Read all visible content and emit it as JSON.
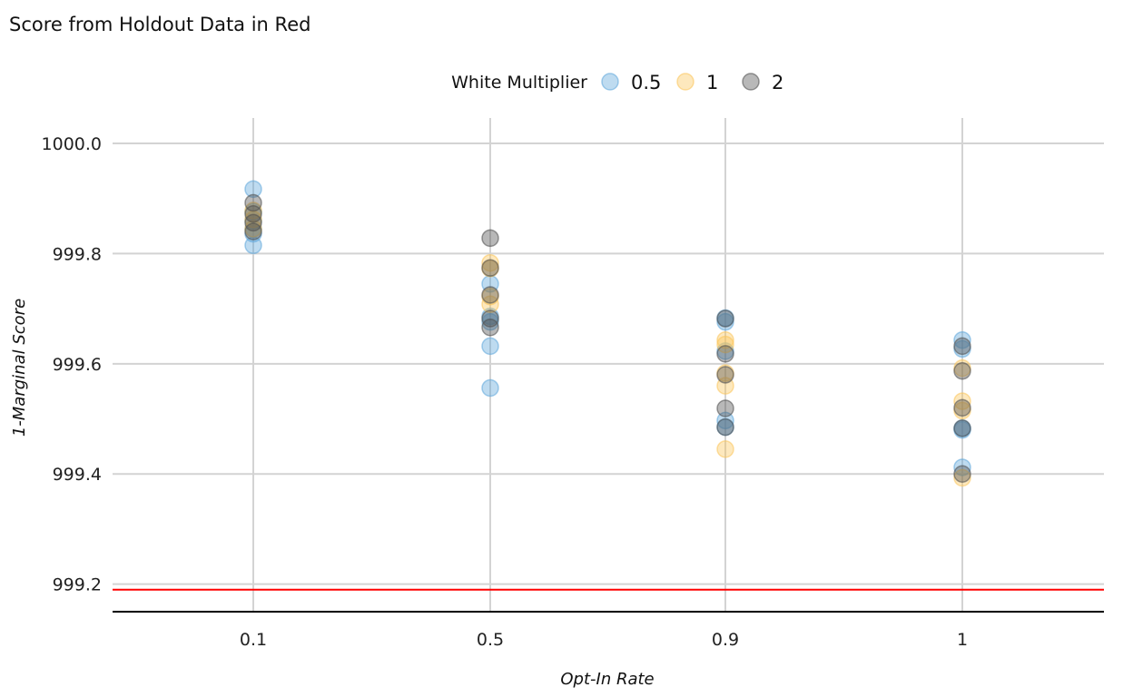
{
  "chart_data": {
    "type": "scatter",
    "title": "Score from Holdout Data in Red",
    "xlabel": "Opt-In Rate",
    "ylabel": "1-Marginal Score",
    "categories": [
      "0.1",
      "0.5",
      "0.9",
      "1"
    ],
    "ylim": [
      999.15,
      1000.0
    ],
    "yticks": [
      "999.2",
      "999.4",
      "999.6",
      "999.8",
      "1000.0"
    ],
    "grid": true,
    "legend": {
      "title": "White Multiplier",
      "placement": "top-center"
    },
    "reference_line": {
      "value": 999.19,
      "color": "#ff0000"
    },
    "series": [
      {
        "name": "0.5",
        "color": "#5DA5DA",
        "points": [
          [
            "0.1",
            999.917
          ],
          [
            "0.1",
            999.876
          ],
          [
            "0.1",
            999.86
          ],
          [
            "0.1",
            999.845
          ],
          [
            "0.1",
            999.836
          ],
          [
            "0.1",
            999.815
          ],
          [
            "0.5",
            999.745
          ],
          [
            "0.5",
            999.686
          ],
          [
            "0.5",
            999.676
          ],
          [
            "0.5",
            999.632
          ],
          [
            "0.5",
            999.556
          ],
          [
            "0.9",
            999.683
          ],
          [
            "0.9",
            999.676
          ],
          [
            "0.9",
            999.623
          ],
          [
            "0.9",
            999.497
          ],
          [
            "0.9",
            999.485
          ],
          [
            "1",
            999.643
          ],
          [
            "1",
            999.627
          ],
          [
            "1",
            999.483
          ],
          [
            "1",
            999.48
          ],
          [
            "1",
            999.412
          ]
        ]
      },
      {
        "name": "1",
        "color": "#FBC55A",
        "points": [
          [
            "0.1",
            999.878
          ],
          [
            "0.1",
            999.862
          ],
          [
            "0.1",
            999.845
          ],
          [
            "0.5",
            999.783
          ],
          [
            "0.5",
            999.773
          ],
          [
            "0.5",
            999.722
          ],
          [
            "0.5",
            999.708
          ],
          [
            "0.9",
            999.643
          ],
          [
            "0.9",
            999.635
          ],
          [
            "0.9",
            999.583
          ],
          [
            "0.9",
            999.56
          ],
          [
            "0.9",
            999.445
          ],
          [
            "1",
            999.592
          ],
          [
            "1",
            999.532
          ],
          [
            "1",
            999.515
          ],
          [
            "1",
            999.393
          ]
        ]
      },
      {
        "name": "2",
        "color": "#4D4D4D",
        "points": [
          [
            "0.1",
            999.892
          ],
          [
            "0.1",
            999.872
          ],
          [
            "0.1",
            999.856
          ],
          [
            "0.1",
            999.84
          ],
          [
            "0.5",
            999.828
          ],
          [
            "0.5",
            999.774
          ],
          [
            "0.5",
            999.725
          ],
          [
            "0.5",
            999.682
          ],
          [
            "0.5",
            999.666
          ],
          [
            "0.9",
            999.682
          ],
          [
            "0.9",
            999.618
          ],
          [
            "0.9",
            999.58
          ],
          [
            "0.9",
            999.519
          ],
          [
            "0.9",
            999.485
          ],
          [
            "1",
            999.632
          ],
          [
            "1",
            999.587
          ],
          [
            "1",
            999.52
          ],
          [
            "1",
            999.483
          ],
          [
            "1",
            999.4
          ]
        ]
      }
    ]
  }
}
